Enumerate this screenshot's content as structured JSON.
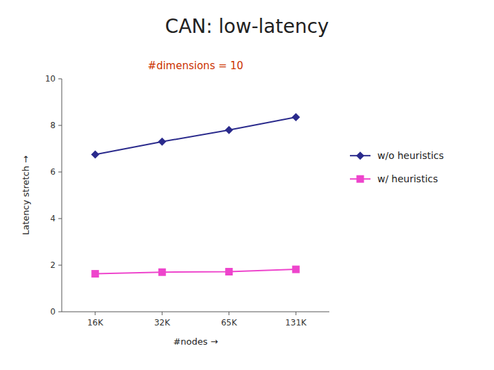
{
  "chart_data": {
    "type": "line",
    "title": "CAN: low-latency",
    "subtitle": "#dimensions = 10",
    "x_label": "#nodes →",
    "y_label": "Latency stretch →",
    "categories": [
      "16K",
      "32K",
      "65K",
      "131K"
    ],
    "series": [
      {
        "name": "w/o heuristics",
        "color": "#2a2a8c",
        "marker": "diamond",
        "values": [
          6.75,
          7.3,
          7.8,
          8.35
        ]
      },
      {
        "name": "w/ heuristics",
        "color": "#ee44cc",
        "marker": "square",
        "values": [
          1.63,
          1.7,
          1.72,
          1.82
        ]
      }
    ],
    "ylim": [
      0,
      10
    ],
    "yticks": [
      0,
      2,
      4,
      6,
      8,
      10
    ],
    "grid": false,
    "legend": "right"
  }
}
